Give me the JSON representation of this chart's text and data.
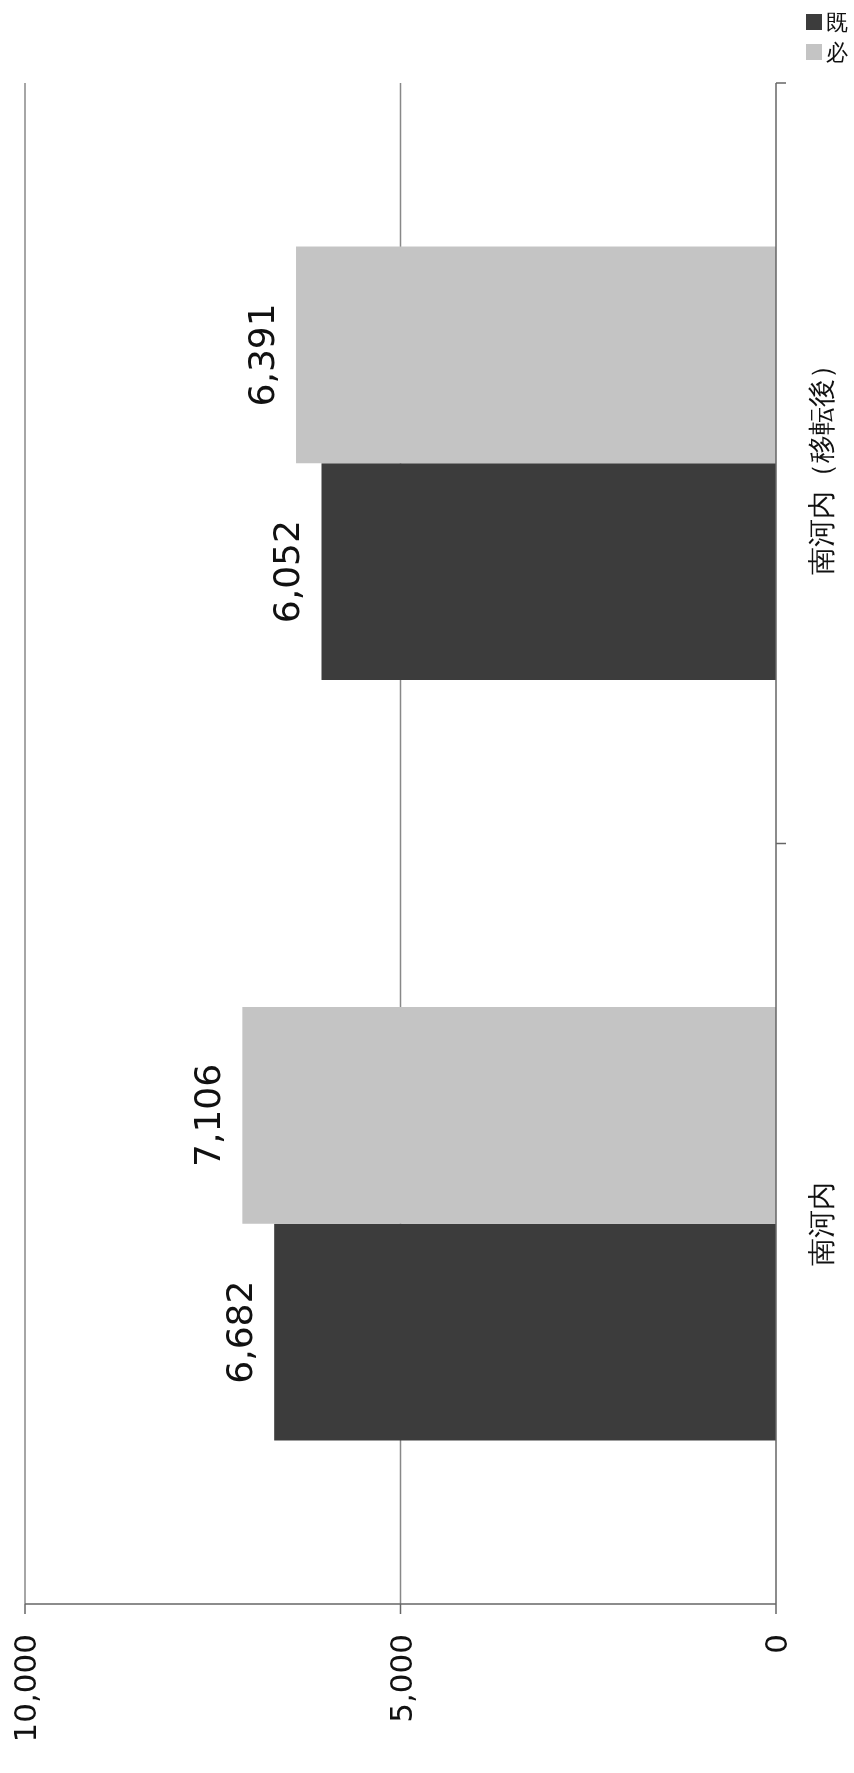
{
  "chart_data": {
    "type": "bar",
    "orientation": "horizontal",
    "categories": [
      "南河内（移転後）",
      "南河内"
    ],
    "series": [
      {
        "name": "既",
        "color": "#3c3c3c",
        "values": [
          6052,
          6682
        ],
        "value_labels": [
          "6,052",
          "6,682"
        ]
      },
      {
        "name": "必",
        "color": "#c4c4c4",
        "values": [
          6391,
          7106
        ],
        "value_labels": [
          "6,391",
          "7,106"
        ]
      }
    ],
    "xlim": [
      10000,
      0
    ],
    "xticks": [
      {
        "value": 0,
        "label": "0"
      },
      {
        "value": 5000,
        "label": "5,000"
      },
      {
        "value": 10000,
        "label": "10,000"
      }
    ],
    "grid": "x",
    "legend": "top right"
  }
}
